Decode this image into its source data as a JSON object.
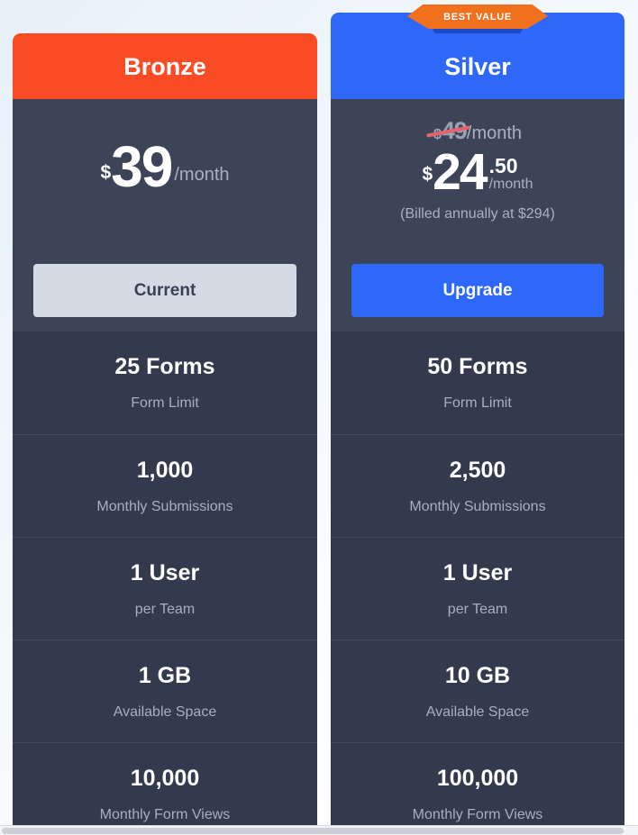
{
  "colors": {
    "bronze_header": "#F94B24",
    "silver_header": "#2E68FB",
    "upgrade_button": "#2E68FB",
    "current_button": "#D4DBE5",
    "card_price_bg": "#3D4458",
    "card_row_bg": "#333A4D",
    "badge_bg": "#F1701E",
    "strike_line": "#E7626D"
  },
  "badge": {
    "label": "BEST VALUE"
  },
  "plans": {
    "bronze": {
      "name": "Bronze",
      "price": {
        "currency": "$",
        "amount": "39",
        "period": "/month"
      },
      "button": {
        "label": "Current"
      },
      "features": [
        {
          "value": "25 Forms",
          "label": "Form Limit"
        },
        {
          "value": "1,000",
          "label": "Monthly Submissions"
        },
        {
          "value": "1 User",
          "label": "per Team"
        },
        {
          "value": "1 GB",
          "label": "Available Space"
        },
        {
          "value": "10,000",
          "label": "Monthly Form Views"
        }
      ]
    },
    "silver": {
      "name": "Silver",
      "old_price": {
        "currency": "$",
        "amount": "49",
        "period": "/month"
      },
      "price": {
        "currency": "$",
        "amount": "24",
        "cents": ".50",
        "period": "/month"
      },
      "billing_note": "(Billed annually at $294)",
      "button": {
        "label": "Upgrade"
      },
      "features": [
        {
          "value": "50 Forms",
          "label": "Form Limit"
        },
        {
          "value": "2,500",
          "label": "Monthly Submissions"
        },
        {
          "value": "1 User",
          "label": "per Team"
        },
        {
          "value": "10 GB",
          "label": "Available Space"
        },
        {
          "value": "100,000",
          "label": "Monthly Form Views"
        }
      ]
    }
  }
}
